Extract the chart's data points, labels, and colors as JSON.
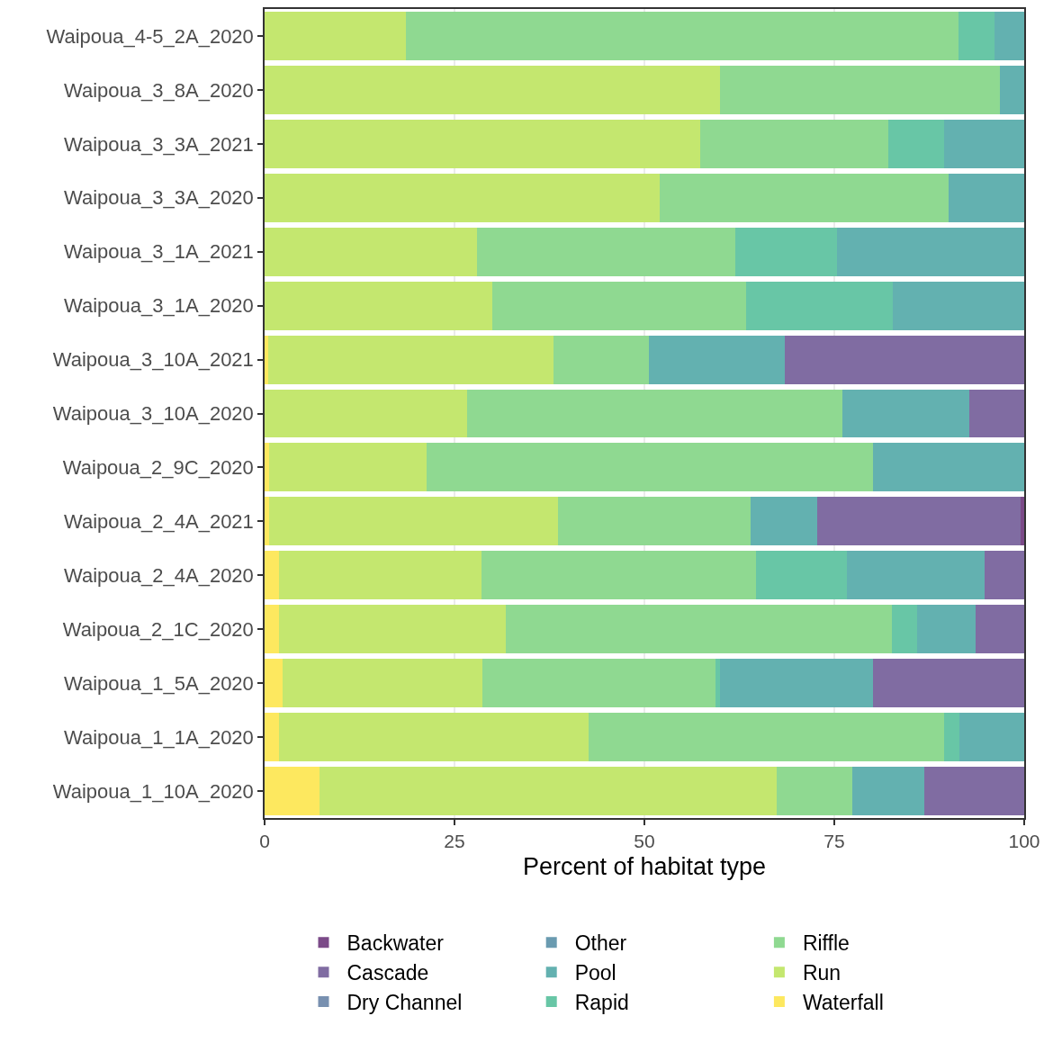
{
  "chart_data": {
    "type": "bar",
    "orientation": "horizontal",
    "stacked": true,
    "xlabel": "Percent of habitat type",
    "categories": [
      "Waipoua_4-5_2A_2020",
      "Waipoua_3_8A_2020",
      "Waipoua_3_3A_2021",
      "Waipoua_3_3A_2020",
      "Waipoua_3_1A_2021",
      "Waipoua_3_1A_2020",
      "Waipoua_3_10A_2021",
      "Waipoua_3_10A_2020",
      "Waipoua_2_9C_2020",
      "Waipoua_2_4A_2021",
      "Waipoua_2_4A_2020",
      "Waipoua_2_1C_2020",
      "Waipoua_1_5A_2020",
      "Waipoua_1_1A_2020",
      "Waipoua_1_10A_2020"
    ],
    "series": [
      {
        "name": "Waterfall",
        "color": "#fde85f",
        "values": [
          0,
          0,
          0,
          0,
          0,
          0,
          0.5,
          0,
          0.6,
          0.6,
          1.9,
          1.9,
          2.4,
          1.9,
          7.2
        ]
      },
      {
        "name": "Run",
        "color": "#c4e76f",
        "values": [
          18.6,
          60.0,
          57.4,
          52.0,
          28.0,
          30.0,
          37.5,
          26.6,
          20.7,
          38.0,
          26.7,
          29.9,
          26.3,
          40.8,
          60.2
        ]
      },
      {
        "name": "Riffle",
        "color": "#8fd991",
        "values": [
          72.8,
          36.8,
          24.7,
          38.1,
          34.0,
          33.4,
          12.6,
          49.5,
          58.8,
          25.4,
          36.1,
          50.8,
          30.7,
          46.8,
          10.0
        ]
      },
      {
        "name": "Rapid",
        "color": "#68c6a6",
        "values": [
          4.7,
          0,
          7.3,
          0,
          13.4,
          19.3,
          0,
          0,
          0,
          0,
          12.0,
          3.3,
          0.6,
          2.0,
          0
        ]
      },
      {
        "name": "Pool",
        "color": "#63b1b0",
        "values": [
          3.9,
          3.2,
          10.6,
          9.9,
          24.6,
          17.3,
          17.9,
          16.7,
          19.9,
          8.7,
          18.1,
          7.7,
          20.1,
          8.5,
          9.4
        ]
      },
      {
        "name": "Other",
        "color": "#6a9bb0",
        "values": [
          0,
          0,
          0,
          0,
          0,
          0,
          0,
          0,
          0,
          0,
          0,
          0,
          0,
          0,
          0
        ]
      },
      {
        "name": "Dry Channel",
        "color": "#7890b0",
        "values": [
          0,
          0,
          0,
          0,
          0,
          0,
          0,
          0,
          0,
          0,
          0,
          0,
          0,
          0,
          0
        ]
      },
      {
        "name": "Cascade",
        "color": "#806ca2",
        "values": [
          0,
          0,
          0,
          0,
          0,
          0,
          31.5,
          7.2,
          0,
          26.8,
          5.2,
          6.4,
          19.9,
          0,
          13.2
        ]
      },
      {
        "name": "Backwater",
        "color": "#7b4a88",
        "values": [
          0,
          0,
          0,
          0,
          0,
          0,
          0,
          0,
          0,
          0.5,
          0,
          0,
          0,
          0,
          0
        ]
      }
    ],
    "xlim": [
      0,
      100
    ],
    "xticks": [
      0,
      25,
      50,
      75,
      100
    ],
    "grid": "x",
    "legend": "bottom"
  }
}
